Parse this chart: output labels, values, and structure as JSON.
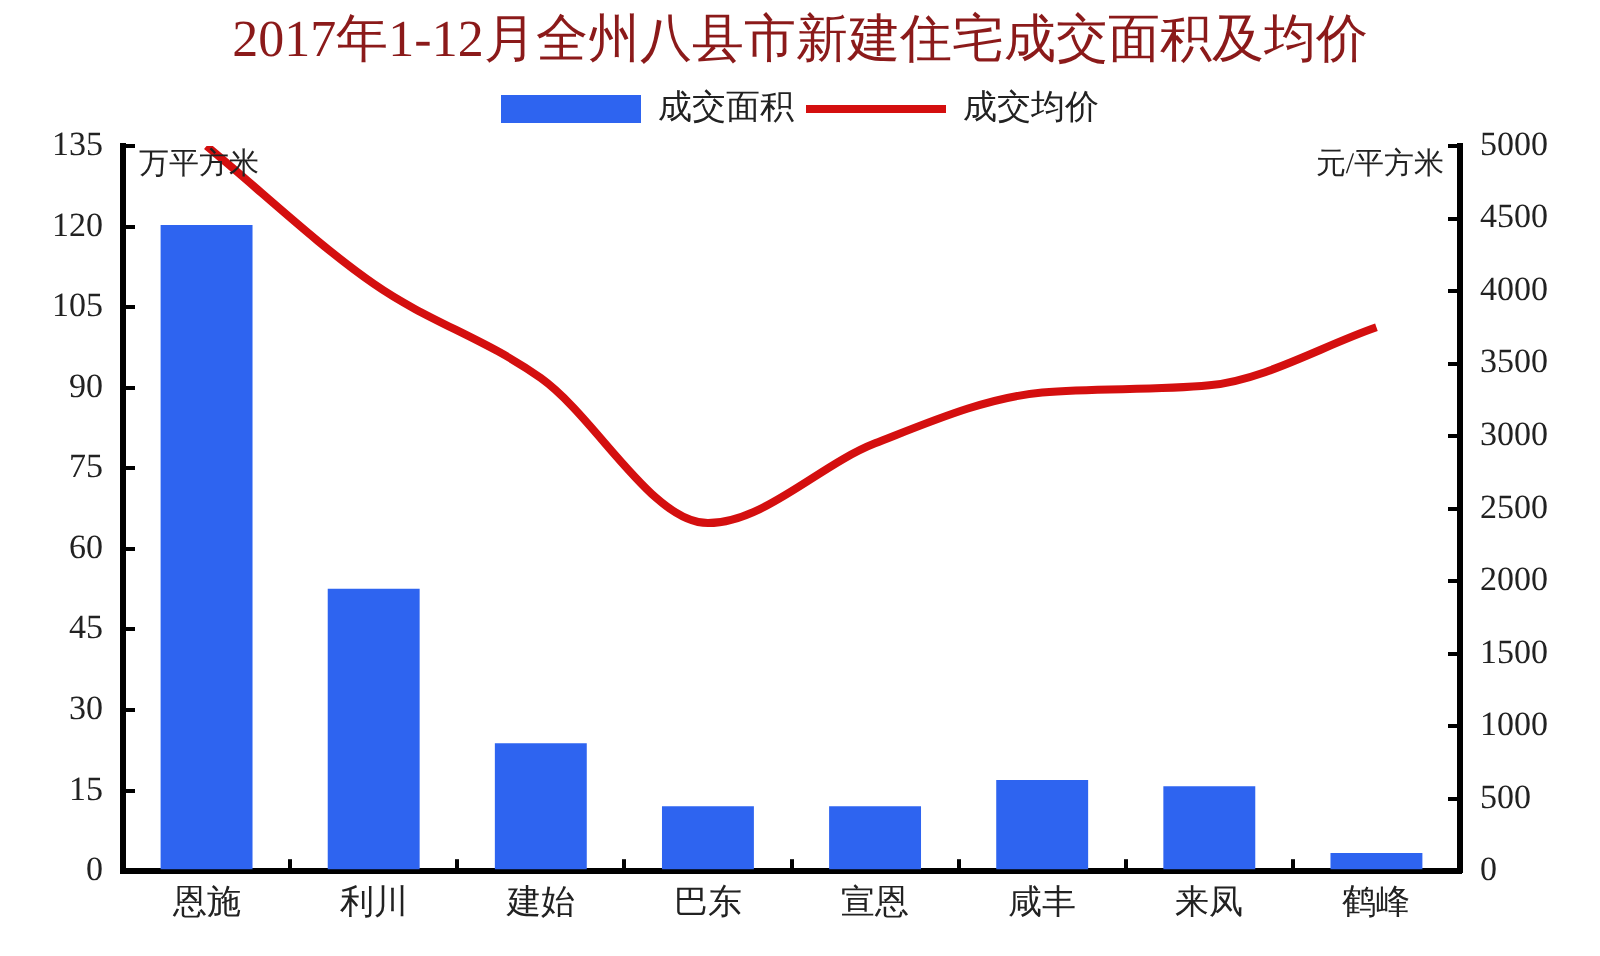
{
  "chart_data": {
    "type": "bar",
    "title": "2017年1-12月全州八县市新建住宅成交面积及均价",
    "ylabel": "万平方米",
    "y2label": "元/平方米",
    "categories": [
      "恩施",
      "利川",
      "建始",
      "巴东",
      "宣恩",
      "咸丰",
      "来凤",
      "鹤峰"
    ],
    "series": [
      {
        "name": "成交面积",
        "type": "bar",
        "color": "#2e64f0",
        "values": [
          120.3,
          52.6,
          23.8,
          12.1,
          12.1,
          17,
          15.8,
          3.4
        ]
      },
      {
        "name": "成交均价",
        "type": "line",
        "axis": "y2",
        "color": "#d40f0f",
        "values": [
          5000,
          4050,
          3400,
          2400,
          2950,
          3300,
          3350,
          3750
        ]
      }
    ],
    "ylim": [
      0,
      135
    ],
    "yticks": [
      0,
      15,
      30,
      45,
      60,
      75,
      90,
      105,
      120,
      135
    ],
    "y2lim": [
      0,
      5000
    ],
    "y2ticks": [
      0,
      500,
      1000,
      1500,
      2000,
      2500,
      3000,
      3500,
      4000,
      4500,
      5000
    ],
    "grid": false,
    "legend": "top",
    "marker": "none"
  }
}
